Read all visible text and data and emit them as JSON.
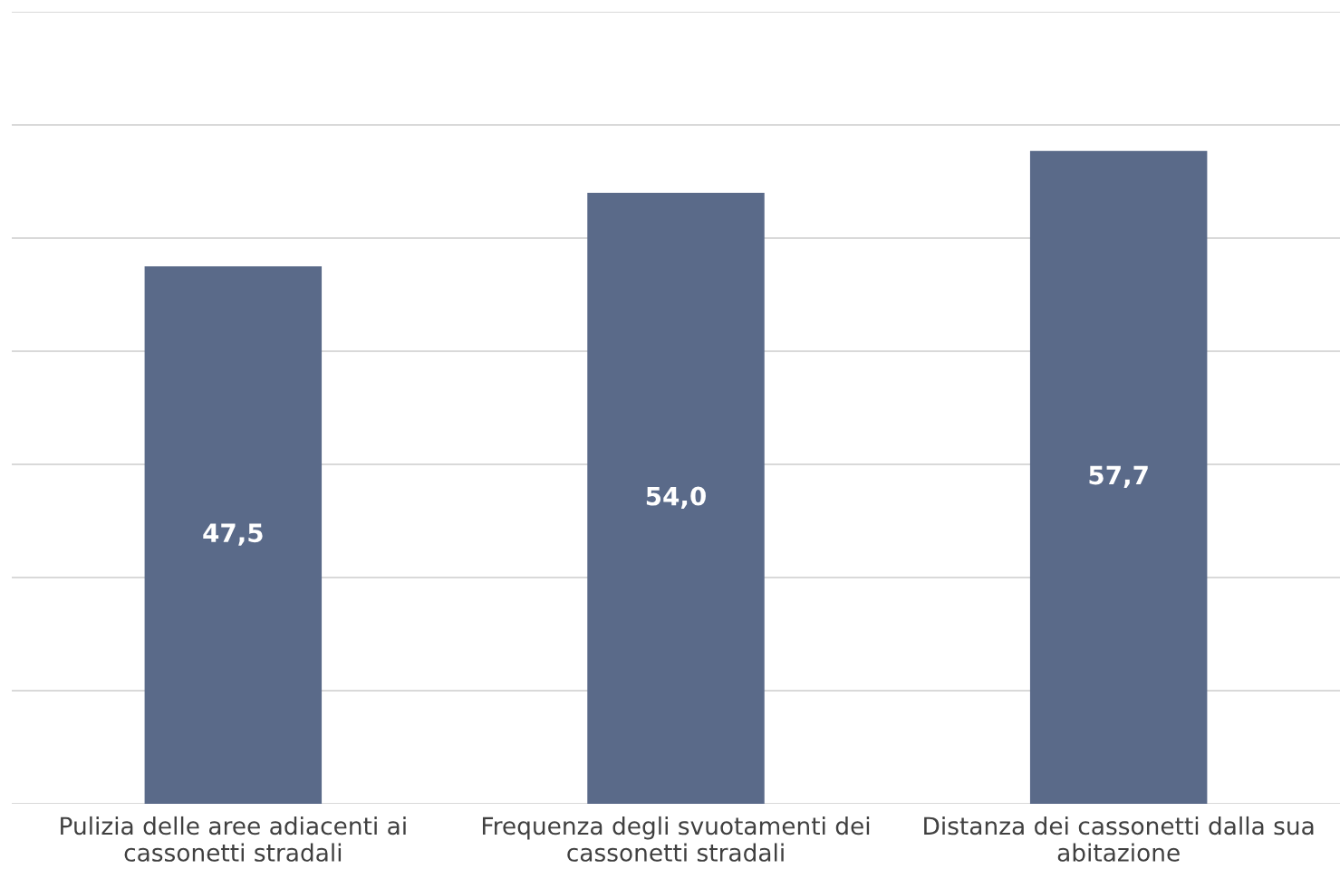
{
  "chart_data": {
    "type": "bar",
    "categories": [
      "Pulizia delle aree adiacenti ai cassonetti stradali",
      "Frequenza degli svuotamenti dei cassonetti stradali",
      "Distanza dei cassonetti dalla sua abitazione"
    ],
    "values": [
      47.5,
      54.0,
      57.7
    ],
    "value_labels": [
      "47,5",
      "54,0",
      "57,7"
    ],
    "color": "#5a6a89",
    "ylim": [
      0,
      70
    ],
    "yticks": [
      {
        "value": 0,
        "label": null
      },
      {
        "value": 10,
        "label": null
      },
      {
        "value": 20,
        "label": null
      },
      {
        "value": 30,
        "label": null
      },
      {
        "value": 40,
        "label": null
      },
      {
        "value": 50,
        "label": null
      },
      {
        "value": 60,
        "label": null
      },
      {
        "value": 70,
        "label": null
      }
    ],
    "tick_labels": "x",
    "grid": "y"
  }
}
